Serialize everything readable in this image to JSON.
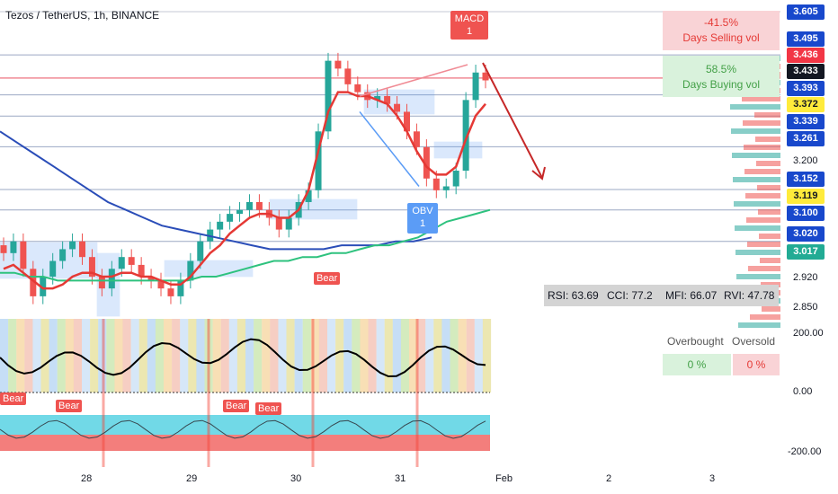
{
  "header": {
    "title": "Tezos / TetherUS, 1h, BINANCE"
  },
  "selling_box": {
    "pct": "-41.5%",
    "label": "Days Selling vol"
  },
  "buying_box": {
    "pct": "58.5%",
    "label": "Days Buying vol"
  },
  "stats": {
    "rsi": "RSI: 63.69",
    "cci": "CCI: 77.2",
    "mfi": "MFI: 66.07",
    "rvi": "RVI: 47.78"
  },
  "obos": {
    "ob_label": "Overbought",
    "os_label": "Oversold",
    "ob_value": "0 %",
    "os_value": "0 %"
  },
  "badges": {
    "macd": {
      "line1": "MACD",
      "line2": "1"
    },
    "obv": {
      "line1": "OBV",
      "line2": "1"
    },
    "bear": "Bear"
  },
  "colors": {
    "bull": "#26a69a",
    "bear": "#ef5350",
    "accent_blue": "#1848cc",
    "red_label": "#f23645",
    "green_label": "#22ab94",
    "yellow_label": "#ffeb3b"
  },
  "chart_data": {
    "type": "candlestick",
    "y_axis_labels": [
      "3.605",
      "3.495",
      "3.436",
      "3.433",
      "3.393",
      "3.372",
      "3.339",
      "3.261",
      "3.200",
      "3.152",
      "3.119",
      "3.100",
      "3.020",
      "3.017",
      "2.920",
      "2.850"
    ],
    "oscillator_axis_labels": [
      "200.00",
      "0.00",
      "-200.00"
    ],
    "x_tick_labels": [
      "28",
      "29",
      "30",
      "31",
      "Feb",
      "2",
      "3"
    ],
    "price_close_series": [
      2.99,
      3.02,
      2.95,
      2.88,
      2.93,
      2.97,
      3.0,
      3.02,
      2.98,
      2.93,
      2.9,
      2.95,
      2.98,
      2.96,
      2.93,
      2.92,
      2.9,
      2.88,
      2.92,
      2.97,
      3.02,
      3.05,
      3.07,
      3.09,
      3.1,
      3.12,
      3.1,
      3.08,
      3.05,
      3.08,
      3.12,
      3.15,
      3.3,
      3.48,
      3.46,
      3.42,
      3.4,
      3.38,
      3.39,
      3.37,
      3.35,
      3.3,
      3.26,
      3.18,
      3.15,
      3.16,
      3.2,
      3.38,
      3.45,
      3.43
    ],
    "ma_short": [
      2.95,
      2.96,
      2.94,
      2.92,
      2.9,
      2.9,
      2.91,
      2.93,
      2.94,
      2.94,
      2.93,
      2.93,
      2.94,
      2.94,
      2.93,
      2.93,
      2.92,
      2.91,
      2.91,
      2.93,
      2.96,
      2.99,
      3.01,
      3.04,
      3.06,
      3.08,
      3.09,
      3.09,
      3.08,
      3.08,
      3.1,
      3.15,
      3.25,
      3.35,
      3.4,
      3.4,
      3.39,
      3.39,
      3.38,
      3.37,
      3.34,
      3.3,
      3.25,
      3.21,
      3.19,
      3.19,
      3.21,
      3.28,
      3.34,
      3.37
    ],
    "ma_mid": [
      2.94,
      2.94,
      2.93,
      2.93,
      2.92,
      2.92,
      2.92,
      2.92,
      2.92,
      2.92,
      2.92,
      2.92,
      2.92,
      2.92,
      2.93,
      2.93,
      2.94,
      2.95,
      2.96,
      2.97,
      2.97,
      2.98,
      2.98,
      2.99,
      2.99,
      3.0,
      3.01,
      3.01,
      3.02,
      3.03,
      3.05,
      3.07,
      3.08,
      3.09,
      3.1
    ],
    "ma_long": [
      3.3,
      3.27,
      3.24,
      3.21,
      3.18,
      3.15,
      3.12,
      3.1,
      3.08,
      3.06,
      3.05,
      3.04,
      3.03,
      3.02,
      3.01,
      3.0,
      3.0,
      3.0,
      3.0,
      3.01,
      3.01,
      3.01,
      3.02,
      3.02,
      3.03
    ],
    "current_price": "3.433"
  }
}
